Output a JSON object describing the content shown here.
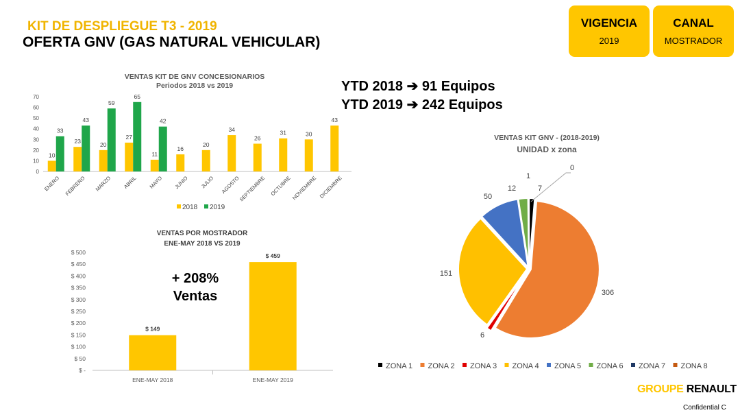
{
  "header": {
    "kit_title": "KIT DE DESPLIEGUE T3 - 2019",
    "offer_title": "OFERTA GNV (GAS NATURAL VEHICULAR)"
  },
  "boxes": {
    "vigencia": {
      "label": "VIGENCIA",
      "value": "2019"
    },
    "canal": {
      "label": "CANAL",
      "value": "MOSTRADOR"
    }
  },
  "ytd": {
    "line1": "YTD 2018 ➔   91 Equipos",
    "line2": "YTD 2019 ➔ 242 Equipos"
  },
  "growth": {
    "line1": "+ 208%",
    "line2": "Ventas"
  },
  "colors": {
    "accent": "#ffc600",
    "green": "#1fa64a",
    "text_gold": "#f0b400"
  },
  "chart_data": [
    {
      "type": "bar",
      "title": "VENTAS KIT DE GNV CONCESIONARIOS",
      "subtitle": "Periodos  2018 vs 2019",
      "categories": [
        "ENERO",
        "FEBRERO",
        "MARZO",
        "ABRIL",
        "MAYO",
        "JUNIO",
        "JULIO",
        "AGOSTO",
        "SEPTIEMBRE",
        "OCTUBRE",
        "NOVIEMBRE",
        "DICIEMBRE"
      ],
      "series": [
        {
          "name": "2018",
          "color": "#ffc600",
          "values": [
            10,
            23,
            20,
            27,
            11,
            16,
            20,
            34,
            26,
            31,
            30,
            43
          ]
        },
        {
          "name": "2019",
          "color": "#1fa64a",
          "values": [
            33,
            43,
            59,
            65,
            42,
            null,
            null,
            null,
            null,
            null,
            null,
            null
          ]
        }
      ],
      "yticks": [
        "0",
        "10",
        "20",
        "30",
        "40",
        "50",
        "60",
        "70"
      ],
      "ylim": [
        0,
        70
      ],
      "legend": "bottom"
    },
    {
      "type": "bar",
      "title": "VENTAS POR MOSTRADOR",
      "subtitle": "ENE-MAY 2018  VS 2019",
      "categories": [
        "ENE-MAY  2018",
        "ENE-MAY  2019"
      ],
      "values": [
        149,
        459
      ],
      "value_labels": [
        "$ 149",
        "$ 459"
      ],
      "color": "#ffc600",
      "yticks": [
        "$ -",
        "$ 50",
        "$ 100",
        "$ 150",
        "$ 200",
        "$ 250",
        "$ 300",
        "$ 350",
        "$ 400",
        "$ 450",
        "$ 500"
      ],
      "ylim": [
        0,
        500
      ]
    },
    {
      "type": "pie",
      "title": "VENTAS  KIT GNV - (2018-2019)",
      "subtitle": "UNIDAD x zona",
      "labels": [
        "ZONA 1",
        "ZONA 2",
        "ZONA 3",
        "ZONA 4",
        "ZONA 5",
        "ZONA 6",
        "ZONA 7",
        "ZONA 8"
      ],
      "values": [
        7,
        306,
        6,
        151,
        50,
        12,
        1,
        0
      ],
      "value_labels": [
        "7",
        "306",
        "6",
        "151",
        "50",
        "12",
        "1",
        "0"
      ],
      "colors": [
        "#000000",
        "#ed7d31",
        "#e00000",
        "#ffc000",
        "#4472c4",
        "#70ad47",
        "#1f3864",
        "#c55a11"
      ],
      "legend": "bottom"
    }
  ],
  "footer": {
    "brand_part1": "GROUPE",
    "brand_part2": "RENAULT",
    "confidential": "Confidential C"
  }
}
